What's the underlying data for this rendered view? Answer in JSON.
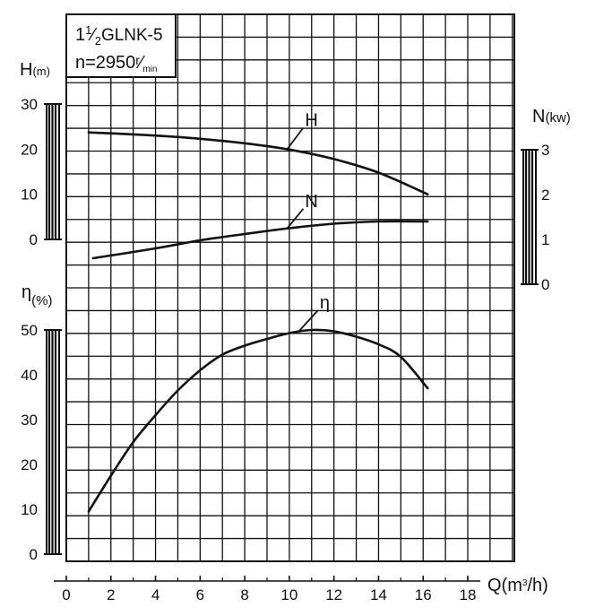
{
  "model": {
    "whole": "1",
    "frac_num": "1",
    "frac_den": "2",
    "name": "GLNK-5",
    "speed_prefix": "n=2950",
    "speed_num": "r",
    "speed_den": "min"
  },
  "axes": {
    "q": {
      "label": "Q(m",
      "sup": "3",
      "tail": "/h)"
    },
    "h": {
      "label": "H",
      "unit": "(m)"
    },
    "n": {
      "label": "N",
      "unit": "(kw)"
    },
    "eta": {
      "label": "η",
      "unit": "(%)"
    }
  },
  "chart_data": {
    "type": "line",
    "x_label": "Q(m³/h)",
    "x_range": [
      0,
      18
    ],
    "x_ticks": [
      "0",
      "2",
      "4",
      "6",
      "8",
      "10",
      "12",
      "14",
      "16",
      "18"
    ],
    "grid": true,
    "axes": {
      "H": {
        "range": [
          0,
          30
        ],
        "ticks": [
          "30",
          "20",
          "10",
          "0"
        ]
      },
      "N": {
        "range": [
          0,
          3
        ],
        "ticks": [
          "3",
          "2",
          "1",
          "0"
        ]
      },
      "eta": {
        "range": [
          0,
          50
        ],
        "ticks": [
          "50",
          "40",
          "30",
          "20",
          "10",
          "0"
        ]
      }
    },
    "series": [
      {
        "name": "H",
        "axis": "H",
        "points": [
          [
            1,
            23.7
          ],
          [
            2,
            23.5
          ],
          [
            4,
            23.0
          ],
          [
            6,
            22.3
          ],
          [
            8,
            21.3
          ],
          [
            10,
            19.9
          ],
          [
            12,
            17.8
          ],
          [
            14,
            14.8
          ],
          [
            16.2,
            10
          ]
        ]
      },
      {
        "name": "N",
        "axis": "N",
        "points": [
          [
            1.2,
            0.58
          ],
          [
            4,
            0.8
          ],
          [
            6,
            0.98
          ],
          [
            8,
            1.12
          ],
          [
            10,
            1.25
          ],
          [
            12,
            1.35
          ],
          [
            14,
            1.4
          ],
          [
            16.2,
            1.4
          ]
        ]
      },
      {
        "name": "η",
        "axis": "eta",
        "points": [
          [
            1,
            9.5
          ],
          [
            2,
            17.5
          ],
          [
            3,
            25
          ],
          [
            4,
            31
          ],
          [
            5,
            36.5
          ],
          [
            6,
            41
          ],
          [
            7,
            44.5
          ],
          [
            8,
            46.5
          ],
          [
            9,
            48
          ],
          [
            10,
            49.3
          ],
          [
            11,
            50
          ],
          [
            12,
            49.7
          ],
          [
            13,
            48.5
          ],
          [
            14,
            46.8
          ],
          [
            15,
            44
          ],
          [
            16.2,
            37
          ]
        ]
      }
    ]
  }
}
